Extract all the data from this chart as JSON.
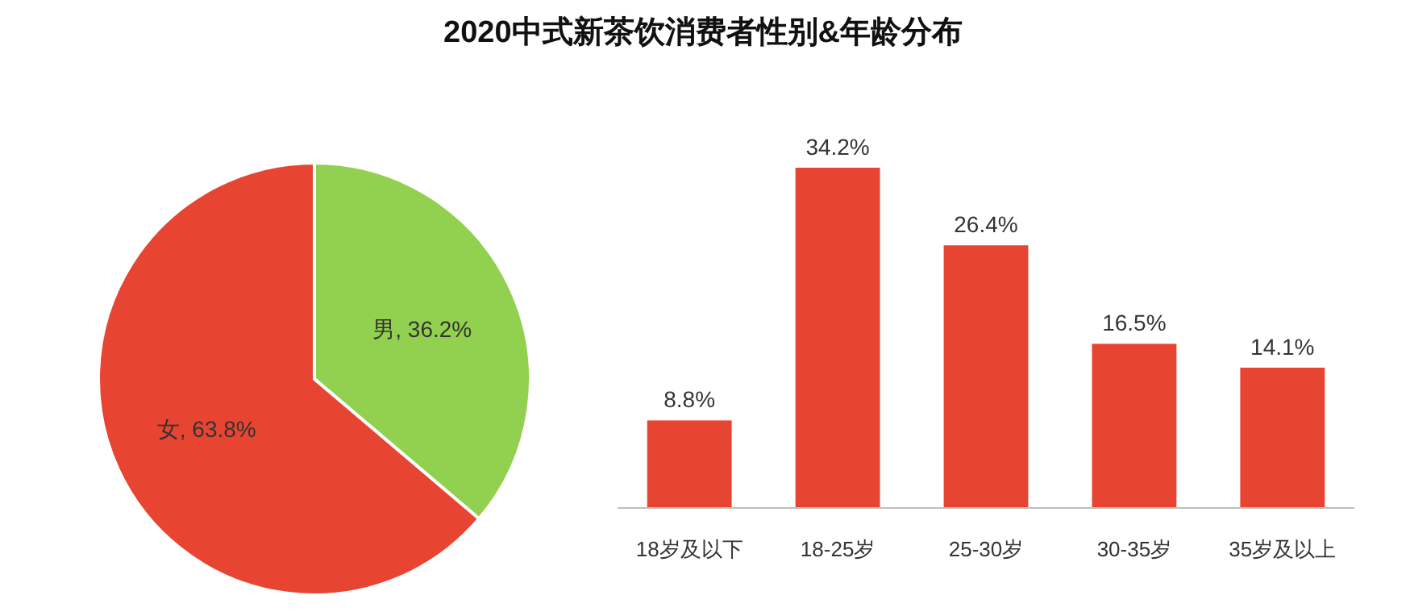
{
  "chart_data": [
    {
      "type": "pie",
      "categories": [
        "男",
        "女"
      ],
      "values": [
        36.2,
        63.8
      ],
      "colors": [
        "#92d050",
        "#e84432"
      ],
      "value_labels": [
        ", 36.2%",
        ", 63.8%"
      ]
    },
    {
      "type": "bar",
      "title": "2020中式新茶饮消费者性别&年龄分布",
      "categories": [
        "18岁及以下",
        "18-25岁",
        "25-30岁",
        "30-35岁",
        "35岁及以上"
      ],
      "values": [
        8.8,
        34.2,
        26.4,
        16.5,
        14.1
      ],
      "color": "#e84432",
      "value_labels": [
        "8.8%",
        "34.2%",
        "26.4%",
        "16.5%",
        "14.1%"
      ]
    }
  ]
}
